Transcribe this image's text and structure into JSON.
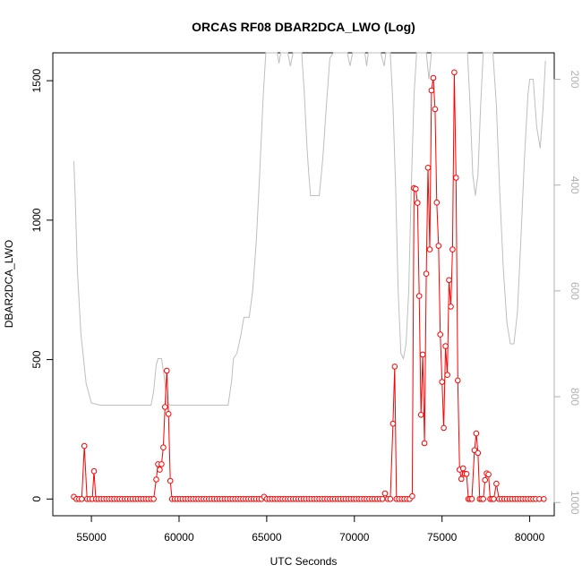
{
  "chart_data": {
    "type": "line",
    "title": "ORCAS RF08 DBAR2DCA_LWO (Log)",
    "xlabel": "UTC Seconds",
    "ylabel": "DBAR2DCA_LWO",
    "xlim": [
      52800,
      81400
    ],
    "ylim": [
      -60,
      1600
    ],
    "y2lim": [
      1025,
      150
    ],
    "x_ticks": [
      55000,
      60000,
      65000,
      70000,
      75000,
      80000
    ],
    "y_ticks": [
      0,
      500,
      1000,
      1500
    ],
    "y2_ticks": [
      200,
      400,
      600,
      800,
      1000
    ],
    "grid": false,
    "legend": "none",
    "colors": {
      "lwo": "#ff0000",
      "pressure": "#bebebe",
      "axis": "#000000",
      "right_axis": "#b0b0b0"
    },
    "series": [
      {
        "axis": "left",
        "style": "line+points",
        "color": "#ff0000",
        "points": [
          [
            54000,
            8
          ],
          [
            54150,
            0
          ],
          [
            54300,
            0
          ],
          [
            54450,
            0
          ],
          [
            54600,
            190
          ],
          [
            54750,
            0
          ],
          [
            54900,
            0
          ],
          [
            55050,
            0
          ],
          [
            55150,
            100
          ],
          [
            55250,
            0
          ],
          [
            55400,
            0
          ],
          [
            55550,
            0
          ],
          [
            55700,
            0
          ],
          [
            55850,
            0
          ],
          [
            56000,
            0
          ],
          [
            56150,
            0
          ],
          [
            56300,
            0
          ],
          [
            56450,
            0
          ],
          [
            56600,
            0
          ],
          [
            56750,
            0
          ],
          [
            56900,
            0
          ],
          [
            57050,
            0
          ],
          [
            57200,
            0
          ],
          [
            57350,
            0
          ],
          [
            57500,
            0
          ],
          [
            57650,
            0
          ],
          [
            57800,
            0
          ],
          [
            57950,
            0
          ],
          [
            58100,
            0
          ],
          [
            58250,
            0
          ],
          [
            58400,
            0
          ],
          [
            58550,
            0
          ],
          [
            58700,
            70
          ],
          [
            58800,
            125
          ],
          [
            58900,
            105
          ],
          [
            59000,
            125
          ],
          [
            59100,
            185
          ],
          [
            59200,
            330
          ],
          [
            59300,
            460
          ],
          [
            59400,
            305
          ],
          [
            59500,
            65
          ],
          [
            59600,
            0
          ],
          [
            59750,
            0
          ],
          [
            59900,
            0
          ],
          [
            60050,
            0
          ],
          [
            60200,
            0
          ],
          [
            60350,
            0
          ],
          [
            60500,
            0
          ],
          [
            60650,
            0
          ],
          [
            60800,
            0
          ],
          [
            60950,
            0
          ],
          [
            61100,
            0
          ],
          [
            61250,
            0
          ],
          [
            61400,
            0
          ],
          [
            61550,
            0
          ],
          [
            61700,
            0
          ],
          [
            61850,
            0
          ],
          [
            62000,
            0
          ],
          [
            62150,
            0
          ],
          [
            62300,
            0
          ],
          [
            62450,
            0
          ],
          [
            62600,
            0
          ],
          [
            62750,
            0
          ],
          [
            62900,
            0
          ],
          [
            63050,
            0
          ],
          [
            63200,
            0
          ],
          [
            63350,
            0
          ],
          [
            63500,
            0
          ],
          [
            63650,
            0
          ],
          [
            63800,
            0
          ],
          [
            63950,
            0
          ],
          [
            64100,
            0
          ],
          [
            64250,
            0
          ],
          [
            64400,
            0
          ],
          [
            64550,
            0
          ],
          [
            64700,
            0
          ],
          [
            64850,
            8
          ],
          [
            65000,
            0
          ],
          [
            65150,
            0
          ],
          [
            65300,
            0
          ],
          [
            65450,
            0
          ],
          [
            65600,
            0
          ],
          [
            65750,
            0
          ],
          [
            65900,
            0
          ],
          [
            66050,
            0
          ],
          [
            66200,
            0
          ],
          [
            66350,
            0
          ],
          [
            66500,
            0
          ],
          [
            66650,
            0
          ],
          [
            66800,
            0
          ],
          [
            66950,
            0
          ],
          [
            67100,
            0
          ],
          [
            67250,
            0
          ],
          [
            67400,
            0
          ],
          [
            67550,
            0
          ],
          [
            67700,
            0
          ],
          [
            67850,
            0
          ],
          [
            68000,
            0
          ],
          [
            68150,
            0
          ],
          [
            68300,
            0
          ],
          [
            68450,
            0
          ],
          [
            68600,
            0
          ],
          [
            68750,
            0
          ],
          [
            68900,
            0
          ],
          [
            69050,
            0
          ],
          [
            69200,
            0
          ],
          [
            69350,
            0
          ],
          [
            69500,
            0
          ],
          [
            69650,
            0
          ],
          [
            69800,
            0
          ],
          [
            69950,
            0
          ],
          [
            70100,
            0
          ],
          [
            70250,
            0
          ],
          [
            70400,
            0
          ],
          [
            70550,
            0
          ],
          [
            70700,
            0
          ],
          [
            70850,
            0
          ],
          [
            71000,
            0
          ],
          [
            71150,
            0
          ],
          [
            71300,
            0
          ],
          [
            71450,
            0
          ],
          [
            71600,
            0
          ],
          [
            71750,
            20
          ],
          [
            71900,
            0
          ],
          [
            72050,
            0
          ],
          [
            72200,
            270
          ],
          [
            72300,
            475
          ],
          [
            72400,
            0
          ],
          [
            72550,
            0
          ],
          [
            72700,
            0
          ],
          [
            72850,
            0
          ],
          [
            73000,
            0
          ],
          [
            73150,
            0
          ],
          [
            73300,
            10
          ],
          [
            73400,
            1115
          ],
          [
            73500,
            1112
          ],
          [
            73600,
            1062
          ],
          [
            73700,
            728
          ],
          [
            73800,
            302
          ],
          [
            73900,
            518
          ],
          [
            74000,
            200
          ],
          [
            74100,
            808
          ],
          [
            74200,
            1188
          ],
          [
            74300,
            895
          ],
          [
            74400,
            1465
          ],
          [
            74500,
            1510
          ],
          [
            74600,
            1398
          ],
          [
            74700,
            1063
          ],
          [
            74800,
            908
          ],
          [
            74900,
            590
          ],
          [
            75000,
            420
          ],
          [
            75100,
            255
          ],
          [
            75200,
            548
          ],
          [
            75300,
            445
          ],
          [
            75400,
            785
          ],
          [
            75500,
            690
          ],
          [
            75600,
            895
          ],
          [
            75700,
            1530
          ],
          [
            75800,
            1152
          ],
          [
            75900,
            425
          ],
          [
            76000,
            105
          ],
          [
            76100,
            72
          ],
          [
            76200,
            110
          ],
          [
            76300,
            90
          ],
          [
            76400,
            90
          ],
          [
            76500,
            0
          ],
          [
            76600,
            0
          ],
          [
            76700,
            0
          ],
          [
            76850,
            175
          ],
          [
            76950,
            235
          ],
          [
            77050,
            165
          ],
          [
            77150,
            0
          ],
          [
            77250,
            0
          ],
          [
            77350,
            0
          ],
          [
            77450,
            68
          ],
          [
            77550,
            92
          ],
          [
            77650,
            88
          ],
          [
            77750,
            0
          ],
          [
            77850,
            0
          ],
          [
            77950,
            0
          ],
          [
            78100,
            55
          ],
          [
            78250,
            0
          ],
          [
            78400,
            0
          ],
          [
            78550,
            0
          ],
          [
            78700,
            0
          ],
          [
            78850,
            0
          ],
          [
            79000,
            0
          ],
          [
            79150,
            0
          ],
          [
            79300,
            0
          ],
          [
            79450,
            0
          ],
          [
            79600,
            0
          ],
          [
            79750,
            0
          ],
          [
            79900,
            0
          ],
          [
            80050,
            0
          ],
          [
            80200,
            0
          ],
          [
            80350,
            0
          ],
          [
            80550,
            0
          ],
          [
            80800,
            0
          ]
        ]
      },
      {
        "axis": "right",
        "style": "line",
        "color": "#bebebe",
        "points": [
          [
            54000,
            355
          ],
          [
            54080,
            430
          ],
          [
            54200,
            560
          ],
          [
            54400,
            680
          ],
          [
            54700,
            775
          ],
          [
            55000,
            812
          ],
          [
            55500,
            816
          ],
          [
            56500,
            816
          ],
          [
            57500,
            816
          ],
          [
            58400,
            816
          ],
          [
            58550,
            790
          ],
          [
            58700,
            740
          ],
          [
            58800,
            728
          ],
          [
            59000,
            728
          ],
          [
            59150,
            760
          ],
          [
            59300,
            812
          ],
          [
            59500,
            816
          ],
          [
            60000,
            816
          ],
          [
            61000,
            816
          ],
          [
            62000,
            816
          ],
          [
            62800,
            816
          ],
          [
            63000,
            770
          ],
          [
            63100,
            728
          ],
          [
            63300,
            718
          ],
          [
            63500,
            688
          ],
          [
            63700,
            650
          ],
          [
            64000,
            650
          ],
          [
            64200,
            600
          ],
          [
            64400,
            510
          ],
          [
            64600,
            380
          ],
          [
            64800,
            230
          ],
          [
            64950,
            150
          ],
          [
            65600,
            150
          ],
          [
            65700,
            170
          ],
          [
            65800,
            150
          ],
          [
            66200,
            150
          ],
          [
            66350,
            175
          ],
          [
            66500,
            150
          ],
          [
            67000,
            150
          ],
          [
            67150,
            230
          ],
          [
            67300,
            330
          ],
          [
            67400,
            380
          ],
          [
            67500,
            420
          ],
          [
            68000,
            420
          ],
          [
            68200,
            350
          ],
          [
            68400,
            250
          ],
          [
            68600,
            160
          ],
          [
            68800,
            150
          ],
          [
            69600,
            150
          ],
          [
            69750,
            175
          ],
          [
            69900,
            150
          ],
          [
            70600,
            150
          ],
          [
            70700,
            175
          ],
          [
            70800,
            150
          ],
          [
            71500,
            150
          ],
          [
            71700,
            175
          ],
          [
            71800,
            150
          ],
          [
            72050,
            150
          ],
          [
            72200,
            250
          ],
          [
            72350,
            400
          ],
          [
            72500,
            600
          ],
          [
            72650,
            718
          ],
          [
            72800,
            728
          ],
          [
            72950,
            700
          ],
          [
            73100,
            600
          ],
          [
            73250,
            400
          ],
          [
            73400,
            230
          ],
          [
            73550,
            150
          ],
          [
            74100,
            150
          ],
          [
            74250,
            200
          ],
          [
            74400,
            150
          ],
          [
            76450,
            150
          ],
          [
            76600,
            250
          ],
          [
            76750,
            380
          ],
          [
            76900,
            420
          ],
          [
            77050,
            380
          ],
          [
            77200,
            250
          ],
          [
            77350,
            150
          ],
          [
            77900,
            150
          ],
          [
            78100,
            250
          ],
          [
            78300,
            420
          ],
          [
            78500,
            560
          ],
          [
            78700,
            660
          ],
          [
            78900,
            700
          ],
          [
            79100,
            700
          ],
          [
            79300,
            640
          ],
          [
            79500,
            500
          ],
          [
            79700,
            350
          ],
          [
            79900,
            230
          ],
          [
            80000,
            200
          ],
          [
            80200,
            200
          ],
          [
            80400,
            290
          ],
          [
            80600,
            330
          ],
          [
            80750,
            260
          ],
          [
            80900,
            165
          ]
        ]
      }
    ]
  }
}
